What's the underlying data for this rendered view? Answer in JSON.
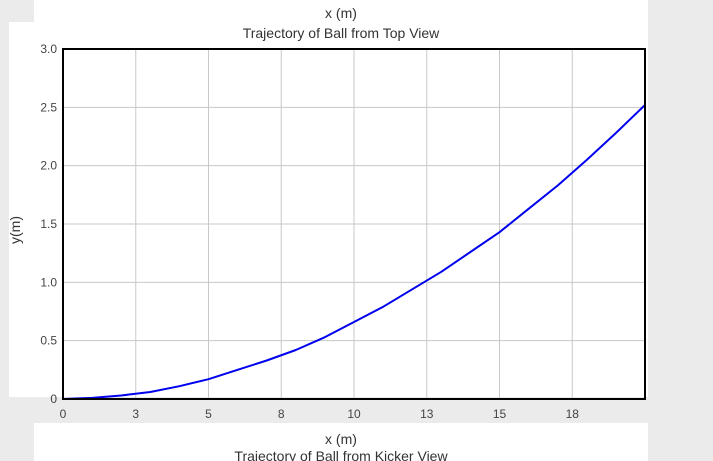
{
  "chart_data": {
    "type": "line",
    "title": "Trajectory of Ball from Top View",
    "xlabel": "x (m)",
    "ylabel": "y(m)",
    "xlim": [
      0,
      20
    ],
    "ylim": [
      0,
      3.0
    ],
    "x_ticks": [
      0,
      2.5,
      5,
      7.5,
      10,
      12.5,
      15,
      17.5
    ],
    "x_tick_labels": [
      "0",
      "3",
      "5",
      "8",
      "10",
      "13",
      "15",
      "18"
    ],
    "y_ticks": [
      0,
      0.5,
      1.0,
      1.5,
      2.0,
      2.5,
      3.0
    ],
    "y_tick_labels": [
      "0",
      "0.5",
      "1.0",
      "1.5",
      "2.0",
      "2.5",
      "3.0"
    ],
    "grid": true,
    "series": [
      {
        "color": "#0000ee",
        "x": [
          0,
          1,
          2,
          3,
          4,
          5,
          6,
          7,
          8,
          9,
          10,
          11,
          12,
          13,
          14,
          15,
          16,
          17,
          18,
          19,
          20
        ],
        "y": [
          0,
          0.01,
          0.03,
          0.06,
          0.11,
          0.17,
          0.25,
          0.33,
          0.42,
          0.53,
          0.66,
          0.79,
          0.94,
          1.09,
          1.26,
          1.43,
          1.63,
          1.83,
          2.05,
          2.28,
          2.52
        ]
      }
    ]
  },
  "top_xlabel": "x (m)",
  "bottom_xlabel": "x (m)",
  "next_title": "Trajectory of Ball from Kicker View"
}
